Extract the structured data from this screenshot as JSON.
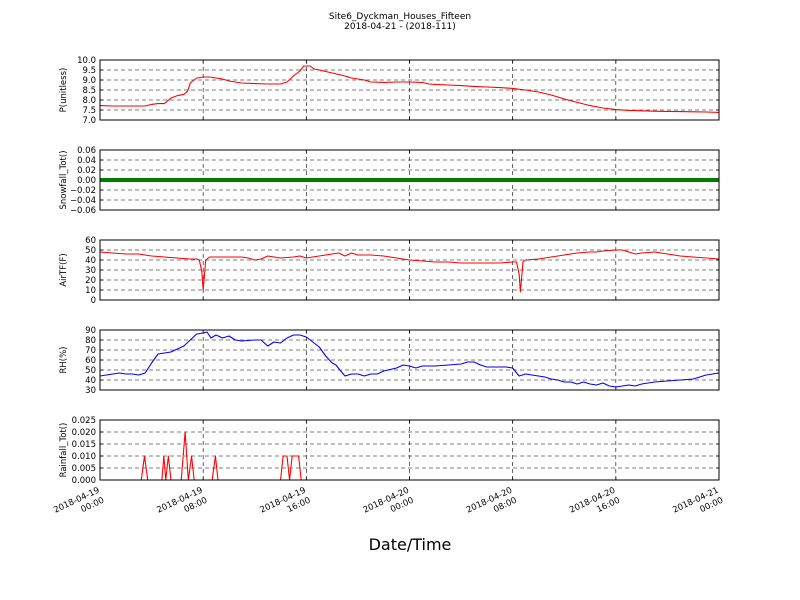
{
  "title": {
    "line1": "Site6_Dyckman_Houses_Fifteen",
    "line2": "2018-04-21 - (2018-111)"
  },
  "xlabel": "Date/Time",
  "chart_data": {
    "type": "line",
    "x_axis": {
      "range_hours": [
        0,
        48
      ],
      "tick_hours": [
        0,
        8,
        16,
        24,
        32,
        40,
        48
      ],
      "tick_labels": [
        [
          "2018-04-19",
          "00:00"
        ],
        [
          "2018-04-19",
          "08:00"
        ],
        [
          "2018-04-19",
          "16:00"
        ],
        [
          "2018-04-20",
          "00:00"
        ],
        [
          "2018-04-20",
          "08:00"
        ],
        [
          "2018-04-20",
          "16:00"
        ],
        [
          "2018-04-21",
          "00:00"
        ]
      ]
    },
    "grid": true,
    "panels": [
      {
        "ylabel": "P(unitless)",
        "ylim": [
          7.0,
          10.0
        ],
        "yticks": [
          7.0,
          7.5,
          8.0,
          8.5,
          9.0,
          9.5,
          10.0
        ],
        "ytick_labels": [
          "7.0",
          "7.5",
          "8.0",
          "8.5",
          "9.0",
          "9.5",
          "10.0"
        ],
        "color": "#ff0000",
        "points": [
          [
            0,
            7.72
          ],
          [
            1,
            7.7
          ],
          [
            3,
            7.7
          ],
          [
            3.5,
            7.7
          ],
          [
            4,
            7.78
          ],
          [
            4.5,
            7.82
          ],
          [
            5,
            7.82
          ],
          [
            5.5,
            8.1
          ],
          [
            6,
            8.22
          ],
          [
            6.5,
            8.28
          ],
          [
            6.8,
            8.45
          ],
          [
            7,
            8.85
          ],
          [
            7.5,
            9.1
          ],
          [
            8,
            9.15
          ],
          [
            8.5,
            9.15
          ],
          [
            9,
            9.1
          ],
          [
            9.5,
            9.05
          ],
          [
            10,
            8.95
          ],
          [
            11,
            8.85
          ],
          [
            12,
            8.82
          ],
          [
            13,
            8.8
          ],
          [
            14,
            8.8
          ],
          [
            14.5,
            8.9
          ],
          [
            15,
            9.2
          ],
          [
            15.5,
            9.45
          ],
          [
            15.8,
            9.7
          ],
          [
            16.3,
            9.7
          ],
          [
            16.6,
            9.55
          ],
          [
            17,
            9.5
          ],
          [
            18,
            9.35
          ],
          [
            19,
            9.2
          ],
          [
            19.5,
            9.1
          ],
          [
            20,
            9.05
          ],
          [
            20.5,
            9.0
          ],
          [
            21,
            8.9
          ],
          [
            22,
            8.88
          ],
          [
            23,
            8.9
          ],
          [
            24,
            8.9
          ],
          [
            25,
            8.88
          ],
          [
            25.5,
            8.8
          ],
          [
            26,
            8.78
          ],
          [
            27,
            8.75
          ],
          [
            28,
            8.72
          ],
          [
            29,
            8.68
          ],
          [
            30,
            8.65
          ],
          [
            31,
            8.62
          ],
          [
            32,
            8.58
          ],
          [
            33,
            8.5
          ],
          [
            34,
            8.4
          ],
          [
            35,
            8.25
          ],
          [
            36,
            8.05
          ],
          [
            37,
            7.88
          ],
          [
            38,
            7.72
          ],
          [
            39,
            7.6
          ],
          [
            40,
            7.52
          ],
          [
            41,
            7.48
          ],
          [
            42,
            7.46
          ],
          [
            43,
            7.44
          ],
          [
            44,
            7.43
          ],
          [
            45,
            7.42
          ],
          [
            46,
            7.41
          ],
          [
            47,
            7.4
          ],
          [
            48,
            7.38
          ]
        ]
      },
      {
        "ylabel": "Snowfall_Tot()",
        "ylim": [
          -0.06,
          0.06
        ],
        "yticks": [
          -0.06,
          -0.04,
          -0.02,
          0.0,
          0.02,
          0.04,
          0.06
        ],
        "ytick_labels": [
          "−0.06",
          "−0.04",
          "−0.02",
          "0.00",
          "0.02",
          "0.04",
          "0.06"
        ],
        "color": "#008000",
        "points": [
          [
            0,
            0.0
          ],
          [
            48,
            0.0
          ]
        ]
      },
      {
        "ylabel": "AirTF(F)",
        "ylim": [
          0,
          60
        ],
        "yticks": [
          0,
          10,
          20,
          30,
          40,
          50,
          60
        ],
        "ytick_labels": [
          "0",
          "10",
          "20",
          "30",
          "40",
          "50",
          "60"
        ],
        "color": "#ff0000",
        "points": [
          [
            0,
            48
          ],
          [
            1,
            47
          ],
          [
            2,
            46
          ],
          [
            3,
            46
          ],
          [
            3.5,
            45
          ],
          [
            4,
            44
          ],
          [
            5,
            43
          ],
          [
            6,
            42
          ],
          [
            7,
            41
          ],
          [
            7.5,
            41
          ],
          [
            7.7,
            40
          ],
          [
            7.9,
            28
          ],
          [
            8,
            10
          ],
          [
            8.2,
            40
          ],
          [
            8.5,
            43
          ],
          [
            9,
            43
          ],
          [
            10,
            43
          ],
          [
            11,
            43
          ],
          [
            11.5,
            42
          ],
          [
            12,
            40
          ],
          [
            12.5,
            41
          ],
          [
            13,
            44
          ],
          [
            14,
            42
          ],
          [
            15,
            43
          ],
          [
            15.5,
            44
          ],
          [
            16,
            42
          ],
          [
            17,
            44
          ],
          [
            18,
            46
          ],
          [
            18.5,
            47
          ],
          [
            19,
            44
          ],
          [
            19.5,
            47
          ],
          [
            20,
            45
          ],
          [
            21,
            45
          ],
          [
            22,
            44
          ],
          [
            23,
            42
          ],
          [
            24,
            40
          ],
          [
            25,
            39
          ],
          [
            26,
            38
          ],
          [
            27,
            38
          ],
          [
            28,
            37
          ],
          [
            29,
            37
          ],
          [
            30,
            37
          ],
          [
            31,
            37
          ],
          [
            32,
            38
          ],
          [
            32.3,
            38
          ],
          [
            32.5,
            26
          ],
          [
            32.6,
            8
          ],
          [
            32.8,
            38
          ],
          [
            33,
            40
          ],
          [
            34,
            41
          ],
          [
            35,
            43
          ],
          [
            36,
            45
          ],
          [
            37,
            47
          ],
          [
            38,
            48
          ],
          [
            38.5,
            48
          ],
          [
            39,
            49
          ],
          [
            40,
            50
          ],
          [
            40.5,
            50
          ],
          [
            41,
            48
          ],
          [
            41.5,
            46
          ],
          [
            42,
            47
          ],
          [
            43,
            48
          ],
          [
            44,
            46
          ],
          [
            45,
            44
          ],
          [
            46,
            43
          ],
          [
            47,
            42
          ],
          [
            48,
            41
          ]
        ]
      },
      {
        "ylabel": "RH(%)",
        "ylim": [
          30,
          90
        ],
        "yticks": [
          30,
          40,
          50,
          60,
          70,
          80,
          90
        ],
        "ytick_labels": [
          "30",
          "40",
          "50",
          "60",
          "70",
          "80",
          "90"
        ],
        "color": "#0000ff",
        "points": [
          [
            0,
            44
          ],
          [
            1,
            46
          ],
          [
            1.5,
            47
          ],
          [
            2,
            46
          ],
          [
            2.5,
            46
          ],
          [
            3,
            45
          ],
          [
            3.5,
            47
          ],
          [
            4,
            57
          ],
          [
            4.5,
            66
          ],
          [
            5,
            67
          ],
          [
            5.5,
            68
          ],
          [
            6,
            71
          ],
          [
            6.5,
            74
          ],
          [
            7,
            80
          ],
          [
            7.5,
            86
          ],
          [
            8,
            87
          ],
          [
            8.3,
            88
          ],
          [
            8.6,
            82
          ],
          [
            9,
            85
          ],
          [
            9.5,
            82
          ],
          [
            10,
            84
          ],
          [
            10.5,
            80
          ],
          [
            11,
            79
          ],
          [
            12,
            80
          ],
          [
            12.5,
            80
          ],
          [
            13,
            74
          ],
          [
            13.5,
            78
          ],
          [
            14,
            77
          ],
          [
            14.5,
            82
          ],
          [
            15,
            85
          ],
          [
            15.5,
            85
          ],
          [
            16,
            83
          ],
          [
            16.5,
            78
          ],
          [
            17,
            73
          ],
          [
            17.5,
            64
          ],
          [
            18,
            57
          ],
          [
            18.3,
            55
          ],
          [
            18.6,
            50
          ],
          [
            19,
            44
          ],
          [
            19.5,
            46
          ],
          [
            20,
            46
          ],
          [
            20.5,
            44
          ],
          [
            21,
            46
          ],
          [
            21.5,
            46
          ],
          [
            22,
            49
          ],
          [
            23,
            52
          ],
          [
            23.5,
            55
          ],
          [
            24,
            54
          ],
          [
            24.5,
            52
          ],
          [
            25,
            54
          ],
          [
            26,
            54
          ],
          [
            27,
            55
          ],
          [
            28,
            56
          ],
          [
            28.5,
            58
          ],
          [
            29,
            58
          ],
          [
            29.5,
            55
          ],
          [
            30,
            53
          ],
          [
            31,
            53
          ],
          [
            31.5,
            53
          ],
          [
            32,
            52
          ],
          [
            32.5,
            44
          ],
          [
            33,
            46
          ],
          [
            34,
            44
          ],
          [
            34.5,
            43
          ],
          [
            35,
            41
          ],
          [
            35.5,
            40
          ],
          [
            36,
            38
          ],
          [
            36.5,
            38
          ],
          [
            37,
            36
          ],
          [
            37.5,
            38
          ],
          [
            38,
            36
          ],
          [
            38.5,
            35
          ],
          [
            39,
            37
          ],
          [
            39.5,
            34
          ],
          [
            40,
            33
          ],
          [
            40.5,
            34
          ],
          [
            41,
            35
          ],
          [
            41.5,
            34
          ],
          [
            42,
            36
          ],
          [
            42.5,
            37
          ],
          [
            43,
            38
          ],
          [
            44,
            39
          ],
          [
            45,
            40
          ],
          [
            46,
            41
          ],
          [
            47,
            45
          ],
          [
            48,
            47
          ]
        ]
      },
      {
        "ylabel": "Rainfall_Tot()",
        "ylim": [
          0,
          0.025
        ],
        "yticks": [
          0,
          0.005,
          0.01,
          0.015,
          0.02,
          0.025
        ],
        "ytick_labels": [
          "0.000",
          "0.005",
          "0.010",
          "0.015",
          "0.020",
          "0.025"
        ],
        "color": "#ff0000",
        "points": [
          [
            0,
            0
          ],
          [
            3.2,
            0
          ],
          [
            3.45,
            0.01
          ],
          [
            3.7,
            0
          ],
          [
            4.8,
            0
          ],
          [
            4.95,
            0.01
          ],
          [
            5.1,
            0
          ],
          [
            5.3,
            0.01
          ],
          [
            5.5,
            0
          ],
          [
            6.3,
            0
          ],
          [
            6.6,
            0.02
          ],
          [
            6.85,
            0
          ],
          [
            7.1,
            0.01
          ],
          [
            7.3,
            0
          ],
          [
            8.7,
            0
          ],
          [
            8.95,
            0.01
          ],
          [
            9.15,
            0
          ],
          [
            14,
            0
          ],
          [
            14.2,
            0.01
          ],
          [
            14.5,
            0.01
          ],
          [
            14.7,
            0
          ],
          [
            14.9,
            0.01
          ],
          [
            15.4,
            0.01
          ],
          [
            15.6,
            0
          ],
          [
            48,
            0
          ]
        ]
      }
    ]
  }
}
